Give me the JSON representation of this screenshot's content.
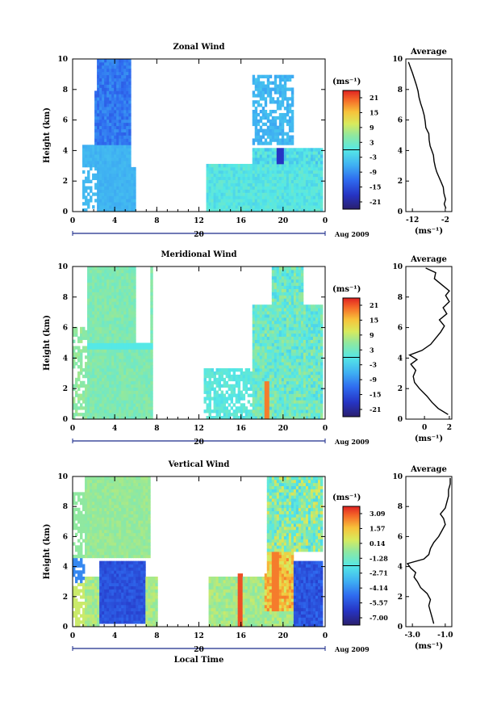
{
  "chart_data": [
    {
      "type": "heatmap",
      "title": "Zonal Wind",
      "ylabel": "Height (km)",
      "ylim": [
        0,
        10
      ],
      "y_ticks": [
        "0",
        "2",
        "4",
        "6",
        "8",
        "10"
      ],
      "x_ticks": [
        "0",
        "4",
        "8",
        "12",
        "16",
        "20",
        "0"
      ],
      "day_label": "20",
      "date_label": "Aug 2009",
      "colorbar": {
        "unit_label": "(ms⁻¹)",
        "ticks": [
          "21",
          "15",
          "9",
          "3",
          "-3",
          "-9",
          "-15",
          "-21"
        ],
        "range": [
          -24,
          24
        ]
      },
      "average": {
        "title": "Average",
        "xlabel": "(ms⁻¹)",
        "x_ticks": [
          "-12",
          "-2"
        ],
        "y_ticks": [
          "0",
          "2",
          "4",
          "6",
          "8",
          "10"
        ],
        "xlim": [
          -14,
          0
        ],
        "profile": [
          [
            -1.8,
            0.2
          ],
          [
            -2.3,
            0.5
          ],
          [
            -1.9,
            0.8
          ],
          [
            -2.4,
            1.2
          ],
          [
            -2.6,
            1.6
          ],
          [
            -3.4,
            2.0
          ],
          [
            -4.0,
            2.3
          ],
          [
            -4.6,
            2.6
          ],
          [
            -5.0,
            2.9
          ],
          [
            -5.4,
            3.3
          ],
          [
            -5.6,
            3.7
          ],
          [
            -6.1,
            4.0
          ],
          [
            -6.6,
            4.3
          ],
          [
            -6.9,
            4.7
          ],
          [
            -7.0,
            5.1
          ],
          [
            -7.9,
            5.5
          ],
          [
            -8.1,
            5.9
          ],
          [
            -8.4,
            6.3
          ],
          [
            -8.9,
            6.7
          ],
          [
            -9.5,
            7.1
          ],
          [
            -10.0,
            7.5
          ],
          [
            -10.3,
            7.9
          ],
          [
            -10.8,
            8.3
          ],
          [
            -11.4,
            8.7
          ],
          [
            -12.0,
            9.1
          ],
          [
            -12.7,
            9.5
          ],
          [
            -13.2,
            9.8
          ]
        ]
      }
    },
    {
      "type": "heatmap",
      "title": "Meridional Wind",
      "ylabel": "Height (km)",
      "ylim": [
        0,
        10
      ],
      "y_ticks": [
        "0",
        "2",
        "4",
        "6",
        "8",
        "10"
      ],
      "x_ticks": [
        "0",
        "4",
        "8",
        "12",
        "16",
        "20",
        "0"
      ],
      "day_label": "20",
      "date_label": "Aug 2009",
      "colorbar": {
        "unit_label": "(ms⁻¹)",
        "ticks": [
          "21",
          "15",
          "9",
          "3",
          "-3",
          "-9",
          "-15",
          "-21"
        ],
        "range": [
          -24,
          24
        ]
      },
      "average": {
        "title": "Average",
        "xlabel": "(ms⁻¹)",
        "x_ticks": [
          "0",
          "2"
        ],
        "y_ticks": [
          "0",
          "2",
          "4",
          "6",
          "8",
          "10"
        ],
        "xlim": [
          -1.5,
          2.2
        ],
        "profile": [
          [
            1.9,
            0.3
          ],
          [
            1.1,
            0.7
          ],
          [
            0.6,
            1.1
          ],
          [
            0.2,
            1.5
          ],
          [
            -0.4,
            2.0
          ],
          [
            -0.8,
            2.4
          ],
          [
            -0.9,
            2.8
          ],
          [
            -0.7,
            3.2
          ],
          [
            -1.1,
            3.6
          ],
          [
            -0.6,
            3.9
          ],
          [
            -1.2,
            4.2
          ],
          [
            -0.2,
            4.5
          ],
          [
            0.5,
            4.9
          ],
          [
            0.9,
            5.3
          ],
          [
            1.3,
            5.7
          ],
          [
            1.6,
            6.1
          ],
          [
            1.2,
            6.5
          ],
          [
            1.8,
            6.9
          ],
          [
            1.5,
            7.3
          ],
          [
            2.0,
            7.7
          ],
          [
            1.7,
            8.1
          ],
          [
            2.0,
            8.4
          ],
          [
            1.4,
            8.8
          ],
          [
            0.8,
            9.2
          ],
          [
            0.9,
            9.6
          ],
          [
            0.1,
            9.9
          ]
        ]
      }
    },
    {
      "type": "heatmap",
      "title": "Vertical Wind",
      "xlabel": "Local Time",
      "ylabel": "Height (km)",
      "ylim": [
        0,
        10
      ],
      "y_ticks": [
        "0",
        "2",
        "4",
        "6",
        "8",
        "10"
      ],
      "x_ticks": [
        "0",
        "4",
        "8",
        "12",
        "16",
        "20",
        "0"
      ],
      "day_label": "20",
      "date_label": "Aug 2009",
      "colorbar": {
        "unit_label": "(ms⁻¹)",
        "ticks": [
          "3.09",
          "1.57",
          "0.14",
          "-1.28",
          "-2.71",
          "-4.14",
          "-5.57",
          "-7.00"
        ],
        "range": [
          -7.7,
          3.8
        ]
      },
      "average": {
        "title": "Average",
        "xlabel": "(ms⁻¹)",
        "x_ticks": [
          "-3.0",
          "-1.0"
        ],
        "y_ticks": [
          "0",
          "2",
          "4",
          "6",
          "8",
          "10"
        ],
        "xlim": [
          -3.4,
          -0.6
        ],
        "profile": [
          [
            -1.7,
            0.2
          ],
          [
            -1.8,
            0.6
          ],
          [
            -1.9,
            1.0
          ],
          [
            -2.0,
            1.4
          ],
          [
            -1.9,
            1.8
          ],
          [
            -2.1,
            2.2
          ],
          [
            -2.5,
            2.6
          ],
          [
            -2.7,
            3.0
          ],
          [
            -2.9,
            3.3
          ],
          [
            -2.8,
            3.6
          ],
          [
            -3.1,
            3.9
          ],
          [
            -3.3,
            4.2
          ],
          [
            -2.3,
            4.5
          ],
          [
            -2.0,
            4.8
          ],
          [
            -1.9,
            5.2
          ],
          [
            -1.7,
            5.6
          ],
          [
            -1.4,
            6.0
          ],
          [
            -1.2,
            6.4
          ],
          [
            -1.0,
            6.8
          ],
          [
            -1.1,
            7.2
          ],
          [
            -1.3,
            7.5
          ],
          [
            -1.0,
            7.9
          ],
          [
            -0.9,
            8.3
          ],
          [
            -0.8,
            8.7
          ],
          [
            -0.8,
            9.1
          ],
          [
            -0.7,
            9.5
          ],
          [
            -0.7,
            9.9
          ]
        ]
      }
    }
  ]
}
